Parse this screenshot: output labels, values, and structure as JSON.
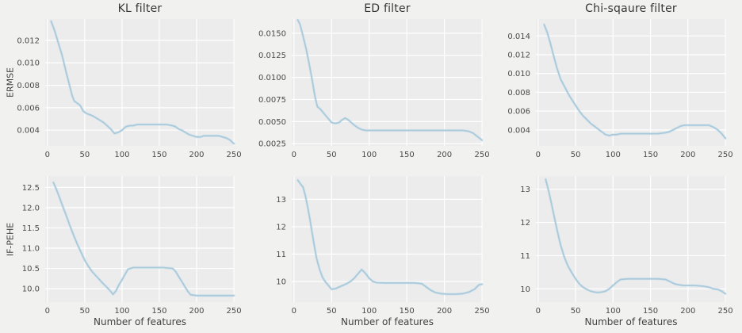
{
  "figure": {
    "background": "#f1f1ef",
    "plot_background": "#ececed",
    "grid_color": "#ffffff",
    "line_color": "#a6c8da",
    "line_halo": "#c6dde9",
    "tick_color": "#4a4a4a",
    "title_color": "#363636"
  },
  "chart_data": [
    {
      "type": "line",
      "title": "KL filter",
      "ylabel": "ERMSE",
      "xlabel": "",
      "xlim": [
        -3,
        251
      ],
      "ylim": [
        0.0026,
        0.0139
      ],
      "grid": true,
      "xticks": [
        0,
        50,
        100,
        150,
        200,
        250
      ],
      "xtick_labels": [
        "0",
        "50",
        "100",
        "150",
        "200",
        "250"
      ],
      "yticks": [
        0.004,
        0.006,
        0.008,
        0.01,
        0.012
      ],
      "ytick_labels": [
        "0.004",
        "0.006",
        "0.008",
        "0.010",
        "0.012"
      ],
      "x": [
        5,
        10,
        15,
        20,
        25,
        30,
        33,
        36,
        40,
        44,
        48,
        52,
        56,
        60,
        65,
        70,
        75,
        80,
        85,
        90,
        95,
        100,
        105,
        110,
        115,
        120,
        130,
        140,
        150,
        160,
        168,
        172,
        176,
        180,
        185,
        190,
        195,
        200,
        205,
        210,
        215,
        220,
        225,
        230,
        235,
        240,
        245,
        250
      ],
      "y": [
        0.0137,
        0.0128,
        0.0117,
        0.0106,
        0.0092,
        0.0079,
        0.0071,
        0.0066,
        0.0064,
        0.0062,
        0.0057,
        0.0055,
        0.0054,
        0.0053,
        0.0051,
        0.0049,
        0.0047,
        0.0044,
        0.0041,
        0.0037,
        0.0038,
        0.004,
        0.0043,
        0.0044,
        0.0044,
        0.0045,
        0.0045,
        0.0045,
        0.0045,
        0.0045,
        0.0044,
        0.0043,
        0.0041,
        0.004,
        0.0038,
        0.0036,
        0.0035,
        0.0034,
        0.0034,
        0.0035,
        0.0035,
        0.0035,
        0.0035,
        0.0035,
        0.0034,
        0.0033,
        0.0031,
        0.0028
      ]
    },
    {
      "type": "line",
      "title": "ED filter",
      "ylabel": "",
      "xlabel": "",
      "xlim": [
        -3,
        251
      ],
      "ylim": [
        0.00225,
        0.0166
      ],
      "grid": true,
      "xticks": [
        0,
        50,
        100,
        150,
        200,
        250
      ],
      "xtick_labels": [
        "0",
        "50",
        "100",
        "150",
        "200",
        "250"
      ],
      "yticks": [
        0.0025,
        0.005,
        0.0075,
        0.01,
        0.0125,
        0.015
      ],
      "ytick_labels": [
        "0.0025",
        "0.0050",
        "0.0075",
        "0.0100",
        "0.0125",
        "0.0150"
      ],
      "x": [
        5,
        8,
        12,
        16,
        20,
        24,
        28,
        31,
        35,
        40,
        45,
        50,
        55,
        60,
        64,
        68,
        72,
        76,
        80,
        85,
        90,
        95,
        100,
        110,
        130,
        150,
        170,
        190,
        210,
        225,
        232,
        238,
        244,
        250
      ],
      "y": [
        0.0165,
        0.016,
        0.0147,
        0.0133,
        0.0116,
        0.0098,
        0.0078,
        0.0067,
        0.0064,
        0.0059,
        0.0054,
        0.0049,
        0.0048,
        0.0049,
        0.0052,
        0.0054,
        0.0052,
        0.0049,
        0.0046,
        0.0043,
        0.0041,
        0.004,
        0.004,
        0.004,
        0.004,
        0.004,
        0.004,
        0.004,
        0.004,
        0.004,
        0.0039,
        0.0037,
        0.0033,
        0.0029
      ]
    },
    {
      "type": "line",
      "title": "Chi-sqaure filter",
      "ylabel": "",
      "xlabel": "",
      "xlim": [
        -3,
        251
      ],
      "ylim": [
        0.0023,
        0.0158
      ],
      "grid": true,
      "xticks": [
        0,
        50,
        100,
        150,
        200,
        250
      ],
      "xtick_labels": [
        "0",
        "50",
        "100",
        "150",
        "200",
        "250"
      ],
      "yticks": [
        0.004,
        0.006,
        0.008,
        0.01,
        0.012,
        0.014
      ],
      "ytick_labels": [
        "0.004",
        "0.006",
        "0.008",
        "0.010",
        "0.012",
        "0.014"
      ],
      "x": [
        8,
        12,
        16,
        20,
        25,
        30,
        34,
        38,
        42,
        46,
        50,
        55,
        60,
        65,
        70,
        75,
        80,
        85,
        90,
        95,
        100,
        105,
        110,
        120,
        140,
        160,
        170,
        175,
        180,
        185,
        190,
        195,
        200,
        210,
        220,
        228,
        234,
        240,
        245,
        250
      ],
      "y": [
        0.0152,
        0.0144,
        0.0133,
        0.0121,
        0.0106,
        0.0094,
        0.0088,
        0.0082,
        0.0076,
        0.0071,
        0.0066,
        0.006,
        0.0055,
        0.0051,
        0.0047,
        0.0044,
        0.0041,
        0.0038,
        0.0035,
        0.0034,
        0.0035,
        0.0035,
        0.0036,
        0.0036,
        0.0036,
        0.0036,
        0.0037,
        0.0038,
        0.004,
        0.0042,
        0.0044,
        0.0045,
        0.0045,
        0.0045,
        0.0045,
        0.0045,
        0.0043,
        0.004,
        0.0036,
        0.0031
      ]
    },
    {
      "type": "line",
      "title": "",
      "ylabel": "IF-PEHE",
      "xlabel": "Number of features",
      "xlim": [
        -3,
        251
      ],
      "ylim": [
        9.67,
        12.78
      ],
      "grid": true,
      "xticks": [
        0,
        50,
        100,
        150,
        200,
        250
      ],
      "xtick_labels": [
        "0",
        "50",
        "100",
        "150",
        "200",
        "250"
      ],
      "yticks": [
        10.0,
        10.5,
        11.0,
        11.5,
        12.0,
        12.5
      ],
      "ytick_labels": [
        "10.0",
        "10.5",
        "11.0",
        "11.5",
        "12.0",
        "12.5"
      ],
      "x": [
        8,
        12,
        16,
        20,
        25,
        30,
        35,
        40,
        45,
        50,
        55,
        60,
        65,
        70,
        75,
        80,
        85,
        88,
        92,
        96,
        100,
        104,
        108,
        115,
        125,
        140,
        155,
        168,
        172,
        176,
        180,
        184,
        188,
        192,
        200,
        210,
        220,
        230,
        240,
        250
      ],
      "y": [
        12.62,
        12.45,
        12.26,
        12.06,
        11.82,
        11.56,
        11.32,
        11.1,
        10.9,
        10.7,
        10.55,
        10.42,
        10.32,
        10.22,
        10.12,
        10.03,
        9.93,
        9.86,
        9.95,
        10.1,
        10.22,
        10.35,
        10.48,
        10.52,
        10.52,
        10.52,
        10.52,
        10.5,
        10.42,
        10.3,
        10.18,
        10.06,
        9.94,
        9.85,
        9.83,
        9.83,
        9.83,
        9.83,
        9.83,
        9.83
      ]
    },
    {
      "type": "line",
      "title": "",
      "ylabel": "",
      "xlabel": "Number of features",
      "xlim": [
        -3,
        251
      ],
      "ylim": [
        9.25,
        13.85
      ],
      "grid": true,
      "xticks": [
        0,
        50,
        100,
        150,
        200,
        250
      ],
      "xtick_labels": [
        "0",
        "50",
        "100",
        "150",
        "200",
        "250"
      ],
      "yticks": [
        10,
        11,
        12,
        13
      ],
      "ytick_labels": [
        "10",
        "11",
        "12",
        "13"
      ],
      "x": [
        5,
        9,
        12,
        15,
        18,
        21,
        24,
        27,
        30,
        34,
        38,
        42,
        46,
        50,
        55,
        60,
        65,
        70,
        75,
        80,
        85,
        90,
        95,
        100,
        105,
        110,
        120,
        140,
        160,
        170,
        176,
        182,
        188,
        195,
        205,
        215,
        225,
        233,
        240,
        246,
        250
      ],
      "y": [
        13.7,
        13.55,
        13.45,
        13.15,
        12.75,
        12.3,
        11.8,
        11.3,
        10.85,
        10.45,
        10.15,
        9.98,
        9.85,
        9.72,
        9.74,
        9.8,
        9.86,
        9.92,
        10.0,
        10.12,
        10.28,
        10.44,
        10.3,
        10.12,
        10.0,
        9.96,
        9.95,
        9.95,
        9.95,
        9.92,
        9.8,
        9.68,
        9.6,
        9.56,
        9.54,
        9.54,
        9.56,
        9.62,
        9.72,
        9.88,
        9.9
      ]
    },
    {
      "type": "line",
      "title": "",
      "ylabel": "",
      "xlabel": "Number of features",
      "xlim": [
        -3,
        251
      ],
      "ylim": [
        9.6,
        13.4
      ],
      "grid": true,
      "xticks": [
        0,
        50,
        100,
        150,
        200,
        250
      ],
      "xtick_labels": [
        "0",
        "50",
        "100",
        "150",
        "200",
        "250"
      ],
      "yticks": [
        10,
        11,
        12,
        13
      ],
      "ytick_labels": [
        "10",
        "11",
        "12",
        "13"
      ],
      "x": [
        10,
        14,
        18,
        22,
        26,
        30,
        35,
        40,
        45,
        50,
        55,
        60,
        65,
        70,
        75,
        80,
        85,
        90,
        95,
        100,
        105,
        110,
        120,
        140,
        160,
        170,
        176,
        182,
        188,
        194,
        200,
        210,
        220,
        228,
        234,
        240,
        245,
        250
      ],
      "y": [
        13.3,
        12.95,
        12.55,
        12.12,
        11.7,
        11.32,
        10.95,
        10.68,
        10.48,
        10.3,
        10.15,
        10.05,
        9.98,
        9.93,
        9.9,
        9.89,
        9.9,
        9.93,
        10.0,
        10.1,
        10.2,
        10.28,
        10.3,
        10.3,
        10.3,
        10.28,
        10.22,
        10.15,
        10.12,
        10.1,
        10.1,
        10.1,
        10.08,
        10.05,
        10.0,
        9.98,
        9.93,
        9.85
      ]
    }
  ]
}
